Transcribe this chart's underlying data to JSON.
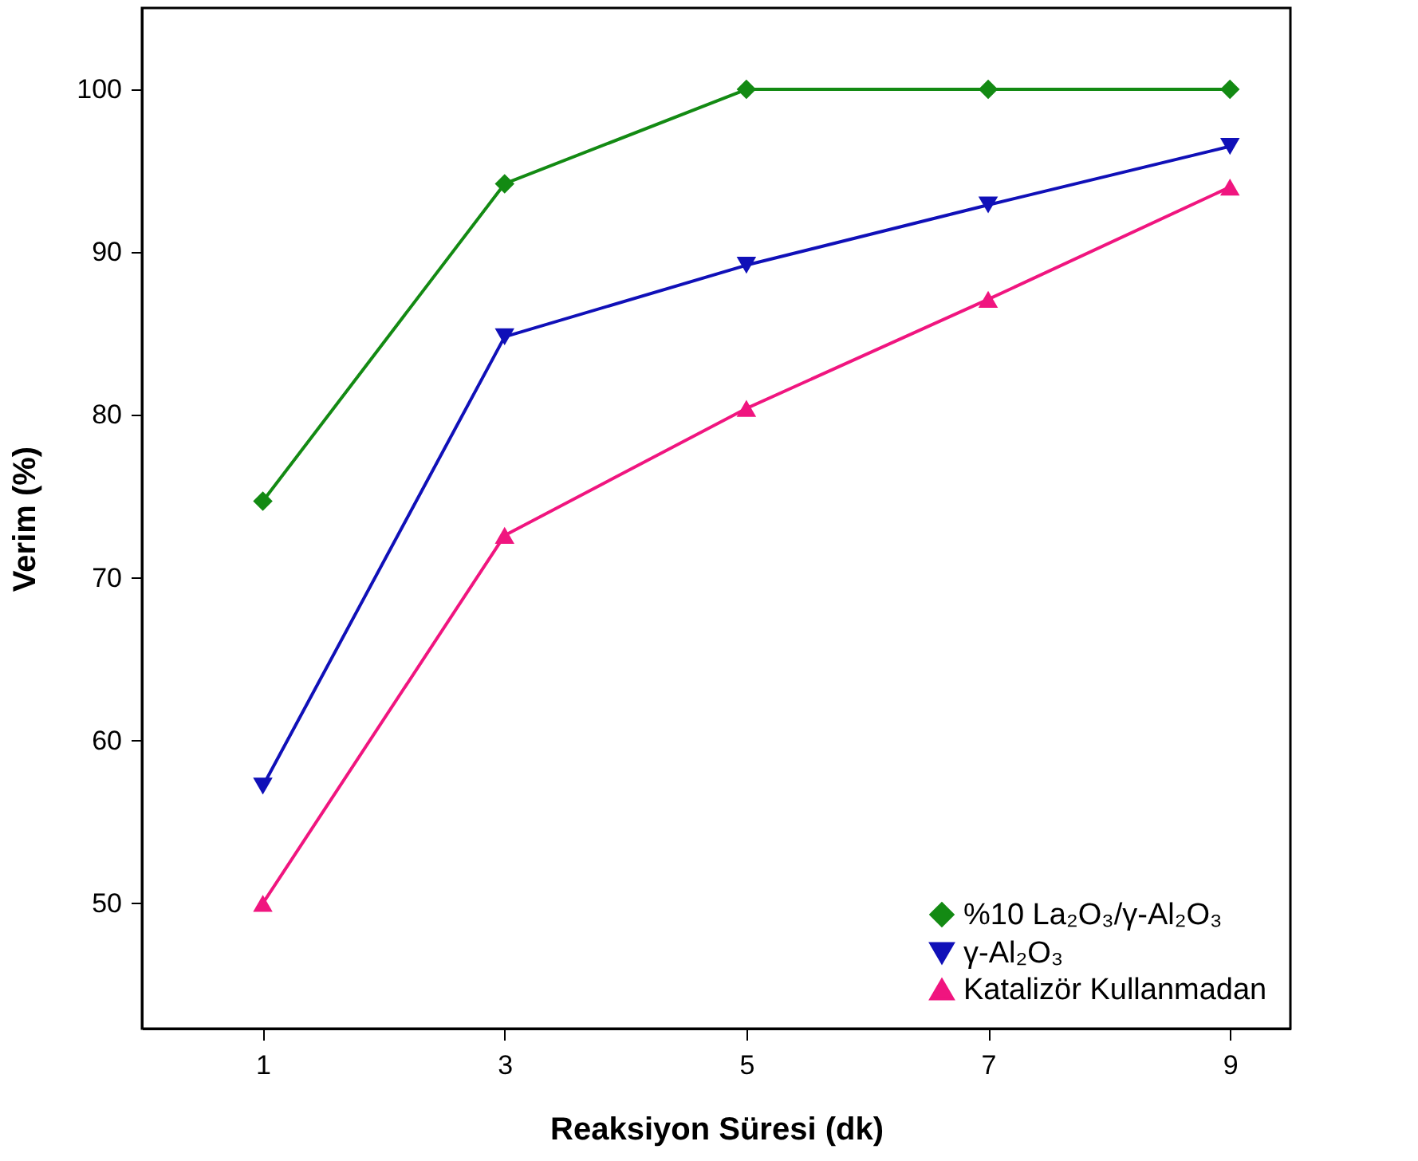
{
  "chart_data": {
    "type": "line",
    "xlabel": "Reaksiyon Süresi (dk)",
    "ylabel": "Verim (%)",
    "x": [
      1,
      3,
      5,
      7,
      9
    ],
    "series": [
      {
        "name": "%10 La₂O₃/γ-Al₂O₃",
        "color": "#138a13",
        "marker": "diamond",
        "values": [
          74.7,
          94.2,
          100,
          100,
          100
        ]
      },
      {
        "name": "γ-Al₂O₃",
        "color": "#1010b8",
        "marker": "triangle-down",
        "values": [
          57.2,
          84.8,
          89.2,
          92.9,
          96.5
        ]
      },
      {
        "name": "Katalizör Kullanmadan",
        "color": "#f0157f",
        "marker": "triangle",
        "values": [
          50,
          72.6,
          80.4,
          87.1,
          94.0
        ]
      }
    ],
    "xlim": [
      0,
      9.5
    ],
    "ylim": [
      42.3,
      105
    ],
    "xticks": [
      1,
      3,
      5,
      7,
      9
    ],
    "yticks": [
      50,
      60,
      70,
      80,
      90,
      100
    ],
    "grid": false,
    "legend": "bottom right",
    "line_style": "solid"
  }
}
